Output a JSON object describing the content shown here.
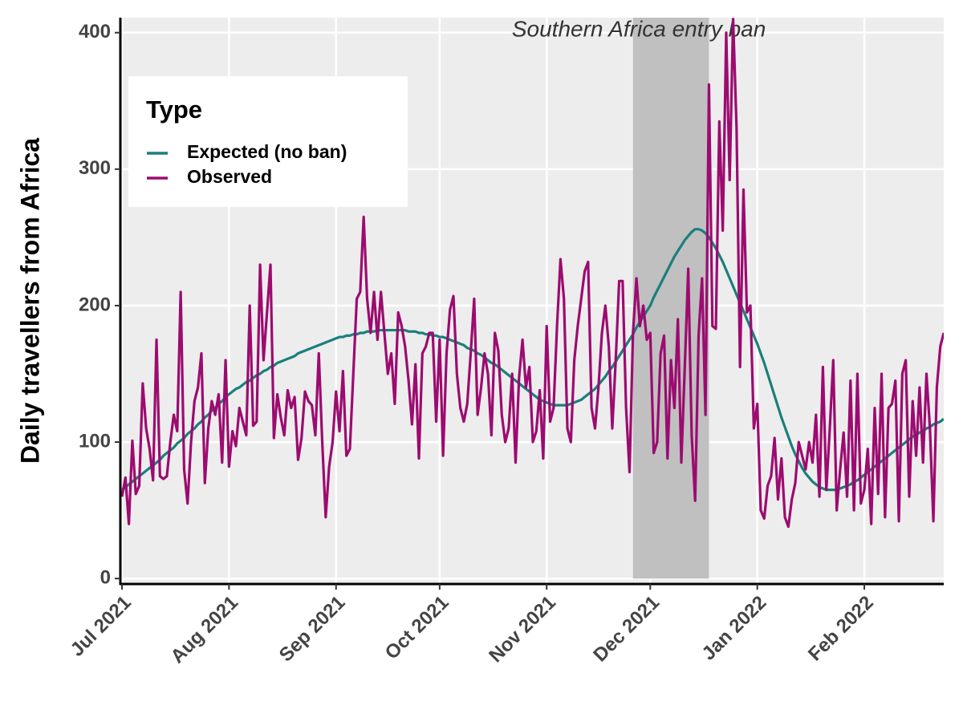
{
  "chart_data": {
    "type": "line",
    "ylabel": "Daily travellers from Africa",
    "xlim": [
      "2021-07-01",
      "2022-02-24"
    ],
    "ylim": [
      -4,
      411
    ],
    "yticks": [
      0,
      100,
      200,
      300,
      400
    ],
    "xticks": [
      {
        "value": "2021-07-01",
        "label": "Jul 2021"
      },
      {
        "value": "2021-08-01",
        "label": "Aug 2021"
      },
      {
        "value": "2021-09-01",
        "label": "Sep 2021"
      },
      {
        "value": "2021-10-01",
        "label": "Oct 2021"
      },
      {
        "value": "2021-11-01",
        "label": "Nov 2021"
      },
      {
        "value": "2021-12-01",
        "label": "Dec 2021"
      },
      {
        "value": "2022-01-01",
        "label": "Jan 2022"
      },
      {
        "value": "2022-02-01",
        "label": "Feb 2022"
      }
    ],
    "grid": true,
    "legend": {
      "title": "Type",
      "position": "top-left"
    },
    "shade": {
      "label": "Southern Africa entry ban",
      "start": "2021-11-26",
      "end": "2021-12-18",
      "color": "#c0c0c0"
    },
    "x": [
      "2021-07-01",
      "2021-07-02",
      "2021-07-03",
      "2021-07-04",
      "2021-07-05",
      "2021-07-06",
      "2021-07-07",
      "2021-07-08",
      "2021-07-09",
      "2021-07-10",
      "2021-07-11",
      "2021-07-12",
      "2021-07-13",
      "2021-07-14",
      "2021-07-15",
      "2021-07-16",
      "2021-07-17",
      "2021-07-18",
      "2021-07-19",
      "2021-07-20",
      "2021-07-21",
      "2021-07-22",
      "2021-07-23",
      "2021-07-24",
      "2021-07-25",
      "2021-07-26",
      "2021-07-27",
      "2021-07-28",
      "2021-07-29",
      "2021-07-30",
      "2021-07-31",
      "2021-08-01",
      "2021-08-02",
      "2021-08-03",
      "2021-08-04",
      "2021-08-05",
      "2021-08-06",
      "2021-08-07",
      "2021-08-08",
      "2021-08-09",
      "2021-08-10",
      "2021-08-11",
      "2021-08-12",
      "2021-08-13",
      "2021-08-14",
      "2021-08-15",
      "2021-08-16",
      "2021-08-17",
      "2021-08-18",
      "2021-08-19",
      "2021-08-20",
      "2021-08-21",
      "2021-08-22",
      "2021-08-23",
      "2021-08-24",
      "2021-08-25",
      "2021-08-26",
      "2021-08-27",
      "2021-08-28",
      "2021-08-29",
      "2021-08-30",
      "2021-08-31",
      "2021-09-01",
      "2021-09-02",
      "2021-09-03",
      "2021-09-04",
      "2021-09-05",
      "2021-09-06",
      "2021-09-07",
      "2021-09-08",
      "2021-09-09",
      "2021-09-10",
      "2021-09-11",
      "2021-09-12",
      "2021-09-13",
      "2021-09-14",
      "2021-09-15",
      "2021-09-16",
      "2021-09-17",
      "2021-09-18",
      "2021-09-19",
      "2021-09-20",
      "2021-09-21",
      "2021-09-22",
      "2021-09-23",
      "2021-09-24",
      "2021-09-25",
      "2021-09-26",
      "2021-09-27",
      "2021-09-28",
      "2021-09-29",
      "2021-09-30",
      "2021-10-01",
      "2021-10-02",
      "2021-10-03",
      "2021-10-04",
      "2021-10-05",
      "2021-10-06",
      "2021-10-07",
      "2021-10-08",
      "2021-10-09",
      "2021-10-10",
      "2021-10-11",
      "2021-10-12",
      "2021-10-13",
      "2021-10-14",
      "2021-10-15",
      "2021-10-16",
      "2021-10-17",
      "2021-10-18",
      "2021-10-19",
      "2021-10-20",
      "2021-10-21",
      "2021-10-22",
      "2021-10-23",
      "2021-10-24",
      "2021-10-25",
      "2021-10-26",
      "2021-10-27",
      "2021-10-28",
      "2021-10-29",
      "2021-10-30",
      "2021-10-31",
      "2021-11-01",
      "2021-11-02",
      "2021-11-03",
      "2021-11-04",
      "2021-11-05",
      "2021-11-06",
      "2021-11-07",
      "2021-11-08",
      "2021-11-09",
      "2021-11-10",
      "2021-11-11",
      "2021-11-12",
      "2021-11-13",
      "2021-11-14",
      "2021-11-15",
      "2021-11-16",
      "2021-11-17",
      "2021-11-18",
      "2021-11-19",
      "2021-11-20",
      "2021-11-21",
      "2021-11-22",
      "2021-11-23",
      "2021-11-24",
      "2021-11-25",
      "2021-11-26",
      "2021-11-27",
      "2021-11-28",
      "2021-11-29",
      "2021-11-30",
      "2021-12-01",
      "2021-12-02",
      "2021-12-03",
      "2021-12-04",
      "2021-12-05",
      "2021-12-06",
      "2021-12-07",
      "2021-12-08",
      "2021-12-09",
      "2021-12-10",
      "2021-12-11",
      "2021-12-12",
      "2021-12-13",
      "2021-12-14",
      "2021-12-15",
      "2021-12-16",
      "2021-12-17",
      "2021-12-18",
      "2021-12-19",
      "2021-12-20",
      "2021-12-21",
      "2021-12-22",
      "2021-12-23",
      "2021-12-24",
      "2021-12-25",
      "2021-12-26",
      "2021-12-27",
      "2021-12-28",
      "2021-12-29",
      "2021-12-30",
      "2021-12-31",
      "2022-01-01",
      "2022-01-02",
      "2022-01-03",
      "2022-01-04",
      "2022-01-05",
      "2022-01-06",
      "2022-01-07",
      "2022-01-08",
      "2022-01-09",
      "2022-01-10",
      "2022-01-11",
      "2022-01-12",
      "2022-01-13",
      "2022-01-14",
      "2022-01-15",
      "2022-01-16",
      "2022-01-17",
      "2022-01-18",
      "2022-01-19",
      "2022-01-20",
      "2022-01-21",
      "2022-01-22",
      "2022-01-23",
      "2022-01-24",
      "2022-01-25",
      "2022-01-26",
      "2022-01-27",
      "2022-01-28",
      "2022-01-29",
      "2022-01-30",
      "2022-01-31",
      "2022-02-01",
      "2022-02-02",
      "2022-02-03",
      "2022-02-04",
      "2022-02-05",
      "2022-02-06",
      "2022-02-07",
      "2022-02-08",
      "2022-02-09",
      "2022-02-10",
      "2022-02-11",
      "2022-02-12",
      "2022-02-13",
      "2022-02-14",
      "2022-02-15",
      "2022-02-16",
      "2022-02-17",
      "2022-02-18",
      "2022-02-19",
      "2022-02-20",
      "2022-02-21",
      "2022-02-22",
      "2022-02-23",
      "2022-02-24"
    ],
    "series": [
      {
        "name": "Expected (no ban)",
        "color": "#1b7f7c",
        "values": [
          65,
          67,
          69,
          71,
          73,
          75,
          77,
          79,
          81,
          83,
          85,
          87,
          90,
          92,
          94,
          96,
          99,
          101,
          103,
          106,
          108,
          110,
          113,
          115,
          118,
          120,
          123,
          125,
          128,
          130,
          133,
          135,
          137,
          139,
          140,
          142,
          144,
          145,
          147,
          149,
          150,
          152,
          153,
          155,
          156,
          158,
          159,
          160,
          161,
          162,
          163,
          165,
          166,
          167,
          168,
          169,
          170,
          171,
          172,
          173,
          174,
          175,
          176,
          177,
          177,
          178,
          178,
          179,
          179,
          180,
          180,
          181,
          181,
          181,
          182,
          182,
          182,
          182,
          182,
          182,
          182,
          182,
          182,
          181,
          181,
          181,
          180,
          180,
          179,
          179,
          178,
          178,
          177,
          177,
          176,
          175,
          174,
          173,
          172,
          171,
          169,
          168,
          167,
          165,
          164,
          162,
          160,
          158,
          157,
          155,
          153,
          151,
          149,
          147,
          145,
          143,
          141,
          139,
          137,
          135,
          133,
          131,
          130,
          129,
          128,
          127,
          127,
          127,
          127,
          127,
          128,
          129,
          130,
          131,
          133,
          135,
          137,
          139,
          142,
          145,
          148,
          152,
          155,
          159,
          163,
          167,
          171,
          175,
          179,
          184,
          188,
          192,
          196,
          200,
          206,
          211,
          216,
          221,
          226,
          231,
          236,
          240,
          244,
          248,
          251,
          254,
          256,
          256,
          255,
          253,
          250,
          246,
          242,
          237,
          232,
          226,
          220,
          214,
          208,
          202,
          196,
          190,
          184,
          178,
          172,
          165,
          158,
          150,
          142,
          134,
          126,
          118,
          111,
          104,
          97,
          91,
          86,
          81,
          77,
          74,
          71,
          69,
          67,
          66,
          65,
          65,
          65,
          65,
          66,
          67,
          68,
          69,
          71,
          72,
          74,
          76,
          78,
          80,
          82,
          84,
          86,
          88,
          90,
          92,
          94,
          96,
          98,
          100,
          102,
          104,
          105,
          107,
          108,
          110,
          111,
          113,
          114,
          115,
          117
        ]
      },
      {
        "name": "Observed",
        "color": "#9c0b70",
        "values": [
          60,
          74,
          40,
          101,
          62,
          68,
          143,
          110,
          95,
          72,
          175,
          75,
          73,
          75,
          100,
          120,
          108,
          210,
          80,
          55,
          100,
          130,
          140,
          165,
          70,
          110,
          130,
          120,
          135,
          85,
          160,
          82,
          108,
          97,
          125,
          115,
          105,
          200,
          112,
          115,
          230,
          160,
          195,
          230,
          103,
          135,
          118,
          105,
          138,
          125,
          133,
          87,
          103,
          137,
          130,
          127,
          105,
          165,
          100,
          45,
          82,
          100,
          137,
          108,
          152,
          90,
          95,
          150,
          205,
          210,
          265,
          205,
          180,
          210,
          175,
          210,
          180,
          150,
          165,
          128,
          195,
          185,
          170,
          145,
          113,
          157,
          88,
          165,
          170,
          180,
          180,
          115,
          175,
          90,
          165,
          197,
          207,
          150,
          125,
          115,
          128,
          165,
          205,
          120,
          140,
          165,
          150,
          105,
          180,
          167,
          120,
          100,
          110,
          150,
          85,
          147,
          175,
          140,
          155,
          100,
          108,
          138,
          88,
          185,
          115,
          125,
          185,
          234,
          205,
          110,
          100,
          160,
          185,
          205,
          225,
          232,
          125,
          110,
          140,
          180,
          200,
          170,
          110,
          160,
          218,
          218,
          125,
          78,
          180,
          220,
          185,
          200,
          175,
          180,
          92,
          100,
          165,
          178,
          88,
          160,
          125,
          190,
          85,
          155,
          227,
          105,
          57,
          178,
          220,
          120,
          362,
          185,
          183,
          335,
          255,
          400,
          292,
          410,
          330,
          155,
          285,
          195,
          200,
          110,
          128,
          50,
          44,
          68,
          75,
          103,
          58,
          88,
          45,
          38,
          58,
          70,
          100,
          90,
          80,
          100,
          85,
          120,
          60,
          155,
          65,
          110,
          160,
          50,
          80,
          107,
          60,
          145,
          50,
          150,
          55,
          65,
          95,
          40,
          125,
          62,
          150,
          45,
          125,
          128,
          145,
          42,
          150,
          160,
          60,
          130,
          90,
          140,
          85,
          150,
          110,
          42,
          140,
          170,
          180
        ]
      }
    ]
  }
}
